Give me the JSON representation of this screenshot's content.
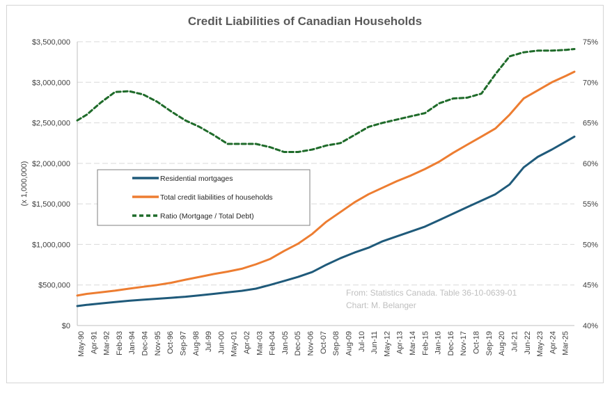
{
  "chart_data": {
    "type": "line",
    "title": "Credit Liabilities of Canadian Households",
    "ylabel": "(x 1,000,000)",
    "y2label": "",
    "ylim": [
      0,
      3500000
    ],
    "y2lim": [
      40,
      75
    ],
    "yticks": [
      "$0",
      "$500,000",
      "$1,000,000",
      "$1,500,000",
      "$2,000,000",
      "$2,500,000",
      "$3,000,000",
      "$3,500,000"
    ],
    "y2ticks": [
      "40%",
      "45%",
      "50%",
      "55%",
      "60%",
      "65%",
      "70%",
      "75%"
    ],
    "xticks": [
      "May-90",
      "Apr-91",
      "Mar-92",
      "Feb-93",
      "Jan-94",
      "Dec-94",
      "Nov-95",
      "Oct-96",
      "Sep-97",
      "Aug-98",
      "Jul-99",
      "Jun-00",
      "May-01",
      "Apr-02",
      "Mar-03",
      "Feb-04",
      "Jan-05",
      "Dec-05",
      "Nov-06",
      "Oct-07",
      "Sep-08",
      "Aug-09",
      "Jul-10",
      "Jun-11",
      "May-12",
      "Apr-13",
      "Mar-14",
      "Feb-15",
      "Jan-16",
      "Dec-16",
      "Nov-17",
      "Oct-18",
      "Sep-19",
      "Aug-20",
      "Jul-21",
      "Jun-22",
      "May-23",
      "Apr-24",
      "Mar-25"
    ],
    "x": [
      1990.33,
      1991,
      1992,
      1993,
      1994,
      1995,
      1996,
      1997,
      1998,
      1999,
      2000,
      2001,
      2002,
      2003,
      2004,
      2005,
      2006,
      2007,
      2008,
      2009,
      2010,
      2011,
      2012,
      2013,
      2014,
      2015,
      2016,
      2017,
      2018,
      2019,
      2020,
      2021,
      2022,
      2023,
      2024,
      2025,
      2025.6
    ],
    "series": [
      {
        "name": "Residential mortgages",
        "axis": "left",
        "color": "#1f5a7a",
        "style": "solid",
        "values": [
          240000,
          255000,
          272000,
          290000,
          305000,
          318000,
          330000,
          342000,
          355000,
          372000,
          390000,
          410000,
          428000,
          455000,
          500000,
          550000,
          600000,
          660000,
          750000,
          830000,
          900000,
          960000,
          1040000,
          1100000,
          1160000,
          1220000,
          1300000,
          1380000,
          1460000,
          1540000,
          1620000,
          1740000,
          1950000,
          2080000,
          2170000,
          2270000,
          2330000
        ]
      },
      {
        "name": "Total credit liabilities of households",
        "axis": "left",
        "color": "#ed7d31",
        "style": "solid",
        "values": [
          370000,
          390000,
          410000,
          430000,
          455000,
          478000,
          500000,
          528000,
          565000,
          600000,
          635000,
          665000,
          700000,
          755000,
          820000,
          920000,
          1010000,
          1130000,
          1280000,
          1400000,
          1520000,
          1620000,
          1700000,
          1780000,
          1850000,
          1930000,
          2020000,
          2130000,
          2230000,
          2330000,
          2430000,
          2600000,
          2800000,
          2900000,
          3000000,
          3080000,
          3130000
        ]
      },
      {
        "name": "Ratio (Mortgage / Total Debt)",
        "axis": "right",
        "color": "#1f6b2a",
        "style": "dashed",
        "values": [
          65.3,
          66.0,
          67.5,
          68.8,
          68.9,
          68.5,
          67.6,
          66.4,
          65.3,
          64.5,
          63.5,
          62.4,
          62.4,
          62.4,
          62.0,
          61.4,
          61.4,
          61.7,
          62.2,
          62.5,
          63.5,
          64.5,
          65.0,
          65.4,
          65.8,
          66.2,
          67.4,
          68.0,
          68.1,
          68.6,
          71.0,
          73.2,
          73.7,
          73.9,
          73.9,
          74.0,
          74.1
        ]
      }
    ],
    "legend": "left-middle",
    "gridlines": true,
    "annotation": [
      "From: Statistics Canada. Table 36-10-0639-01",
      "Chart: M. Belanger"
    ]
  }
}
